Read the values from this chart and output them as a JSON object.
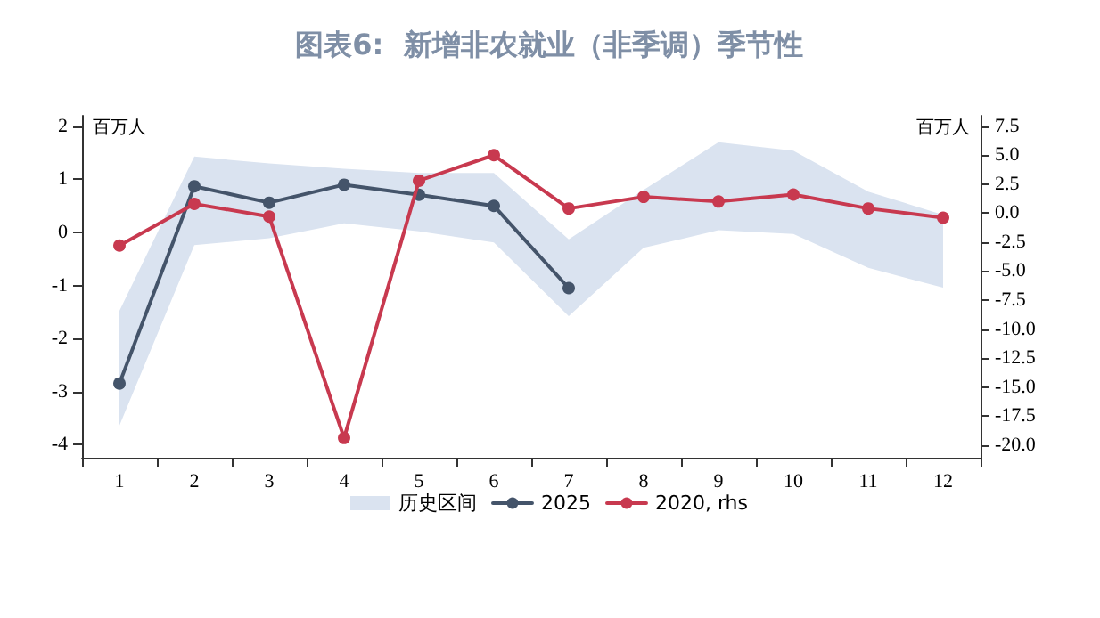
{
  "chart_data": {
    "type": "line",
    "title": "图表6:  新增非农就业（非季调）季节性",
    "ylabel": "百万人",
    "y2label": "百万人",
    "categories": [
      "1",
      "2",
      "3",
      "4",
      "5",
      "6",
      "7",
      "8",
      "9",
      "10",
      "11",
      "12"
    ],
    "series": [
      {
        "name": "历史区间",
        "type": "area",
        "color": "#dae3f0",
        "values": [
          null,
          null,
          null,
          null,
          null,
          null,
          null,
          null,
          null,
          null,
          null,
          null
        ],
        "lower": [
          -3.64,
          -0.24,
          -0.11,
          0.17,
          0.02,
          -0.19,
          -1.58,
          -0.29,
          0.04,
          -0.03,
          -0.67,
          -1.04
        ],
        "upper": [
          -1.48,
          1.43,
          1.3,
          1.2,
          1.12,
          1.12,
          -0.13,
          0.8,
          1.7,
          1.54,
          0.77,
          0.33
        ]
      },
      {
        "name": "2025",
        "color": "#44546a",
        "values": [
          -2.85,
          0.87,
          0.56,
          0.9,
          0.71,
          0.5,
          -1.05,
          null,
          null,
          null,
          null,
          null
        ]
      },
      {
        "name": "2020, rhs",
        "color": "#c8394f",
        "axis": "y2",
        "values": [
          -2.8,
          0.8,
          -0.3,
          -19.4,
          2.8,
          5.0,
          0.4,
          1.4,
          1.0,
          1.6,
          0.4,
          -0.4
        ]
      }
    ],
    "ylim": [
      -4.25,
      2.2
    ],
    "yticks": [
      -4,
      -3,
      -2,
      -1,
      0,
      1,
      2
    ],
    "y2lim": [
      -21.1,
      8.4
    ],
    "y2ticks": [
      {
        "value": -20,
        "label": "-20.0"
      },
      {
        "value": -17.5,
        "label": "-17.5"
      },
      {
        "value": -15,
        "label": "-15.0"
      },
      {
        "value": -12.5,
        "label": "-12.5"
      },
      {
        "value": -10,
        "label": "-10.0"
      },
      {
        "value": -7.5,
        "label": "-7.5"
      },
      {
        "value": -5,
        "label": "-5.0"
      },
      {
        "value": -2.5,
        "label": "-2.5"
      },
      {
        "value": 0,
        "label": "0.0"
      },
      {
        "value": 2.5,
        "label": "2.5"
      },
      {
        "value": 5,
        "label": "5.0"
      },
      {
        "value": 7.5,
        "label": "7.5"
      }
    ],
    "grid": false,
    "legend": "bottom",
    "marker": "circle",
    "line_style": "solid"
  }
}
